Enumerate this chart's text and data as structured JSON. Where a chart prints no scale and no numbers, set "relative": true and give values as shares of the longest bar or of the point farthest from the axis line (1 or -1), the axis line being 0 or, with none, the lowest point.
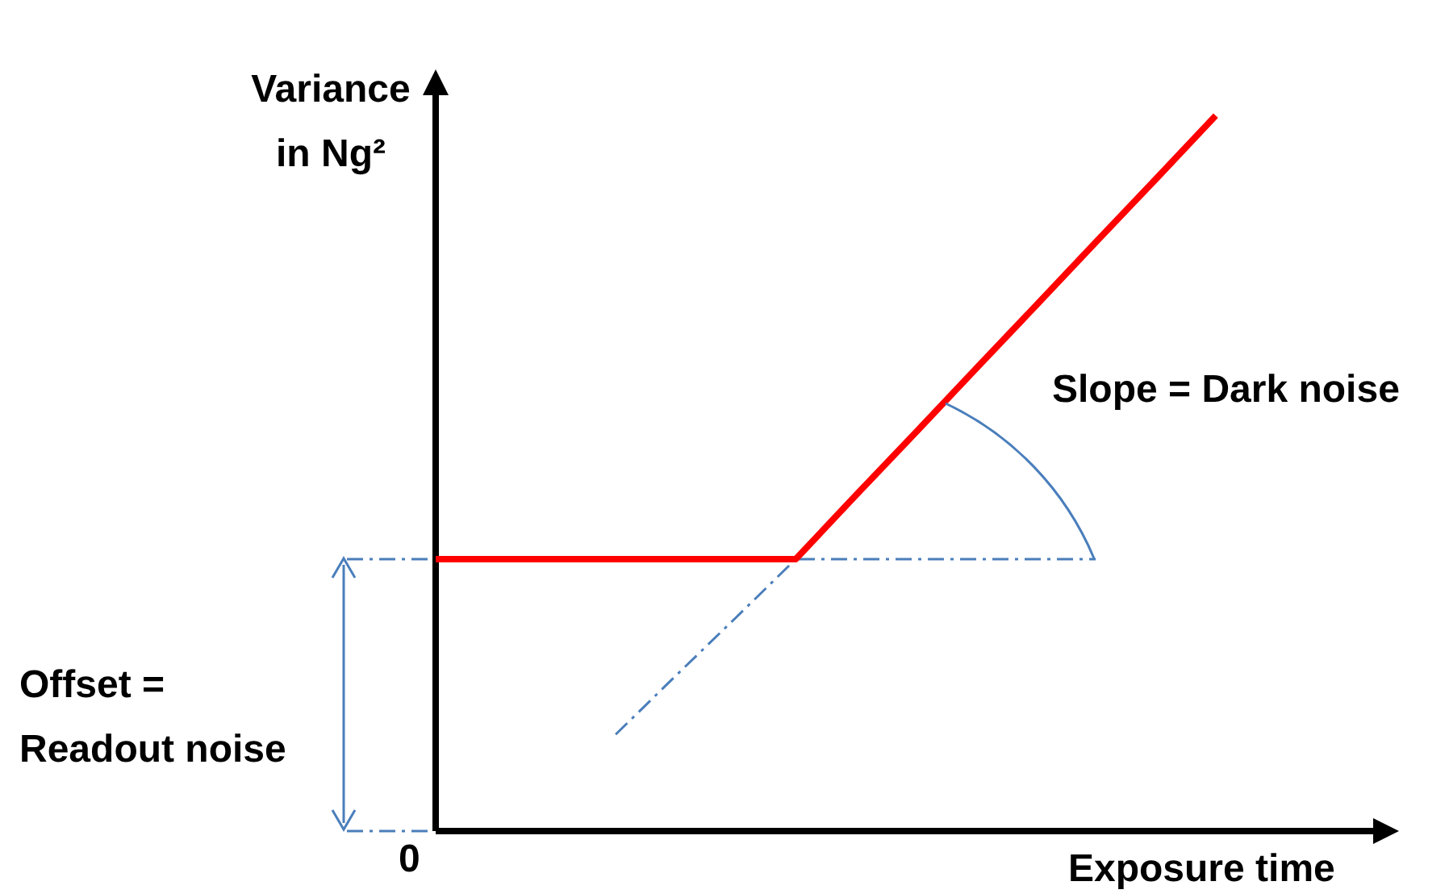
{
  "chart_data": {
    "type": "line",
    "relative": true,
    "xlabel": "Exposure time",
    "ylabel": "Variance in Ng²",
    "categories": [
      null,
      null,
      null,
      null,
      null,
      null,
      null,
      null,
      null,
      null,
      null,
      null,
      null,
      null,
      null,
      null,
      null
    ],
    "series": [
      {
        "color": "#ff0000",
        "values": [
          0.38,
          0.38,
          0.38,
          0.38,
          0.38,
          0.38,
          0.38,
          0.469,
          0.557,
          0.646,
          0.734,
          0.823,
          0.911,
          1,
          null,
          null,
          null
        ]
      },
      {
        "color": "#4a7ebb",
        "line_style": "dashed",
        "values": [
          null,
          null,
          null,
          0.135,
          0.217,
          0.298,
          0.38,
          null,
          null,
          null,
          null,
          null,
          null,
          null,
          null,
          null,
          null
        ]
      }
    ],
    "ref_lines": [
      {
        "axis": "y",
        "value": 0.38,
        "color": "#4a7ebb",
        "line_style": "dashed"
      }
    ],
    "annotations": [
      "Slope = Dark noise",
      "Offset =\nReadout noise",
      "0"
    ],
    "legend": false,
    "marker": "none"
  }
}
